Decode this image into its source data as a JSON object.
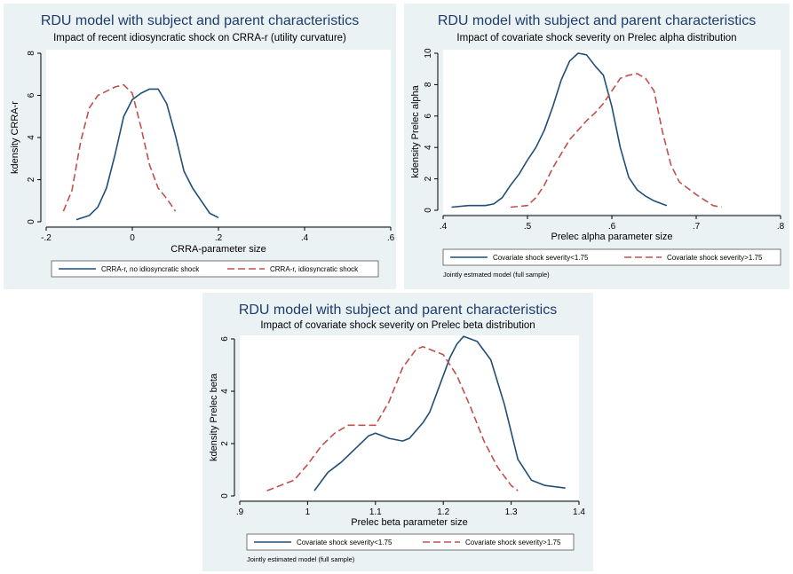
{
  "colors": {
    "solid": "#1f4e79",
    "dashed": "#c0504d",
    "panel_bg": "#eaf2f3",
    "title": "#1f3c6e"
  },
  "chart_data": [
    {
      "type": "line",
      "title": "RDU model with subject and parent characteristics",
      "subtitle": "Impact of recent idiosyncratic shock on CRRA-r (utility curvature)",
      "xlabel": "CRRA-parameter size",
      "ylabel": "kdensity CRRA-r",
      "xlim": [
        -0.2,
        0.6
      ],
      "ylim": [
        0,
        8
      ],
      "xticks": [
        -0.2,
        0,
        0.2,
        0.4,
        0.6
      ],
      "xtick_labels": [
        "-.2",
        "0",
        ".2",
        ".4",
        ".6"
      ],
      "yticks": [
        0,
        2,
        4,
        6,
        8
      ],
      "ytick_labels": [
        "0",
        "2",
        "4",
        "6",
        "8"
      ],
      "note": "",
      "legend_position": "bottom",
      "series": [
        {
          "name": "CRRA-r, no idiosyncratic shock",
          "style": "solid",
          "x": [
            -0.13,
            -0.1,
            -0.08,
            -0.06,
            -0.04,
            -0.02,
            0,
            0.02,
            0.04,
            0.06,
            0.08,
            0.1,
            0.12,
            0.14,
            0.16,
            0.18,
            0.2
          ],
          "y": [
            0.1,
            0.3,
            0.7,
            1.6,
            3.2,
            5.0,
            5.8,
            6.1,
            6.3,
            6.3,
            5.6,
            4.1,
            2.4,
            1.6,
            1.0,
            0.4,
            0.2
          ]
        },
        {
          "name": "CRRA-r, idiosyncratic shock",
          "style": "dashed",
          "x": [
            -0.16,
            -0.14,
            -0.12,
            -0.1,
            -0.08,
            -0.06,
            -0.04,
            -0.02,
            0,
            0.02,
            0.04,
            0.06,
            0.08,
            0.1
          ],
          "y": [
            0.5,
            1.5,
            3.8,
            5.4,
            6.0,
            6.2,
            6.4,
            6.5,
            6.1,
            4.5,
            2.7,
            1.6,
            1.1,
            0.5
          ]
        }
      ]
    },
    {
      "type": "line",
      "title": "RDU model with subject and parent characteristics",
      "subtitle": "Impact of covariate shock severity on Prelec alpha distribution",
      "xlabel": "Prelec alpha parameter size",
      "ylabel": "kdensity Prelec alpha",
      "xlim": [
        0.4,
        0.8
      ],
      "ylim": [
        0,
        10
      ],
      "xticks": [
        0.4,
        0.5,
        0.6,
        0.7,
        0.8
      ],
      "xtick_labels": [
        ".4",
        ".5",
        ".6",
        ".7",
        ".8"
      ],
      "yticks": [
        0,
        2,
        4,
        6,
        8,
        10
      ],
      "ytick_labels": [
        "0",
        "2",
        "4",
        "6",
        "8",
        "10"
      ],
      "note": "Jointly estmated model (full sample)",
      "legend_position": "bottom",
      "series": [
        {
          "name": "Covariate shock severity<1.75",
          "style": "solid",
          "x": [
            0.41,
            0.43,
            0.45,
            0.46,
            0.47,
            0.48,
            0.49,
            0.5,
            0.51,
            0.52,
            0.53,
            0.54,
            0.55,
            0.56,
            0.57,
            0.58,
            0.59,
            0.6,
            0.61,
            0.62,
            0.63,
            0.64,
            0.65,
            0.665
          ],
          "y": [
            0.2,
            0.3,
            0.3,
            0.4,
            0.8,
            1.6,
            2.3,
            3.2,
            4.0,
            5.1,
            6.6,
            8.3,
            9.5,
            10.0,
            9.9,
            9.2,
            8.6,
            6.6,
            4.0,
            2.1,
            1.3,
            0.9,
            0.6,
            0.3
          ]
        },
        {
          "name": "Covariate shock severity>1.75",
          "style": "dashed",
          "x": [
            0.48,
            0.5,
            0.51,
            0.52,
            0.53,
            0.54,
            0.55,
            0.56,
            0.57,
            0.58,
            0.59,
            0.6,
            0.61,
            0.62,
            0.63,
            0.64,
            0.65,
            0.66,
            0.67,
            0.68,
            0.7,
            0.72,
            0.73
          ],
          "y": [
            0.2,
            0.3,
            0.8,
            1.6,
            2.7,
            3.6,
            4.5,
            5.1,
            5.7,
            6.2,
            6.8,
            7.6,
            8.4,
            8.6,
            8.7,
            8.4,
            7.6,
            5.0,
            2.9,
            1.8,
            1.0,
            0.3,
            0.2
          ]
        }
      ]
    },
    {
      "type": "line",
      "title": "RDU model with subject and parent characteristics",
      "subtitle": "Impact of covariate shock severity on Prelec beta distribution",
      "xlabel": "Prelec beta parameter size",
      "ylabel": "kdensity Prelec beta",
      "xlim": [
        0.9,
        1.4
      ],
      "ylim": [
        0,
        6
      ],
      "xticks": [
        0.9,
        1.0,
        1.1,
        1.2,
        1.3,
        1.4
      ],
      "xtick_labels": [
        ".9",
        "1",
        "1.1",
        "1.2",
        "1.3",
        "1.4"
      ],
      "yticks": [
        0,
        2,
        4,
        6
      ],
      "ytick_labels": [
        "0",
        "2",
        "4",
        "6"
      ],
      "note": "Jointly estimated model (full sample)",
      "legend_position": "bottom",
      "series": [
        {
          "name": "Covariate shock severity<1.75",
          "style": "solid",
          "x": [
            1.01,
            1.03,
            1.05,
            1.07,
            1.09,
            1.1,
            1.12,
            1.14,
            1.15,
            1.17,
            1.18,
            1.2,
            1.21,
            1.22,
            1.23,
            1.25,
            1.27,
            1.29,
            1.31,
            1.33,
            1.35,
            1.38
          ],
          "y": [
            0.2,
            0.9,
            1.3,
            1.8,
            2.3,
            2.4,
            2.2,
            2.1,
            2.2,
            2.8,
            3.2,
            4.6,
            5.3,
            5.8,
            6.1,
            5.9,
            5.2,
            3.5,
            1.4,
            0.6,
            0.4,
            0.3
          ]
        },
        {
          "name": "Covariate shock severity>1.75",
          "style": "dashed",
          "x": [
            0.94,
            0.96,
            0.98,
            1.0,
            1.02,
            1.04,
            1.06,
            1.08,
            1.1,
            1.12,
            1.14,
            1.16,
            1.17,
            1.18,
            1.2,
            1.22,
            1.24,
            1.26,
            1.28,
            1.3,
            1.31
          ],
          "y": [
            0.2,
            0.4,
            0.6,
            1.2,
            1.9,
            2.4,
            2.7,
            2.7,
            2.7,
            3.6,
            4.9,
            5.6,
            5.7,
            5.6,
            5.4,
            4.6,
            3.4,
            2.1,
            1.1,
            0.4,
            0.2
          ]
        }
      ]
    }
  ]
}
